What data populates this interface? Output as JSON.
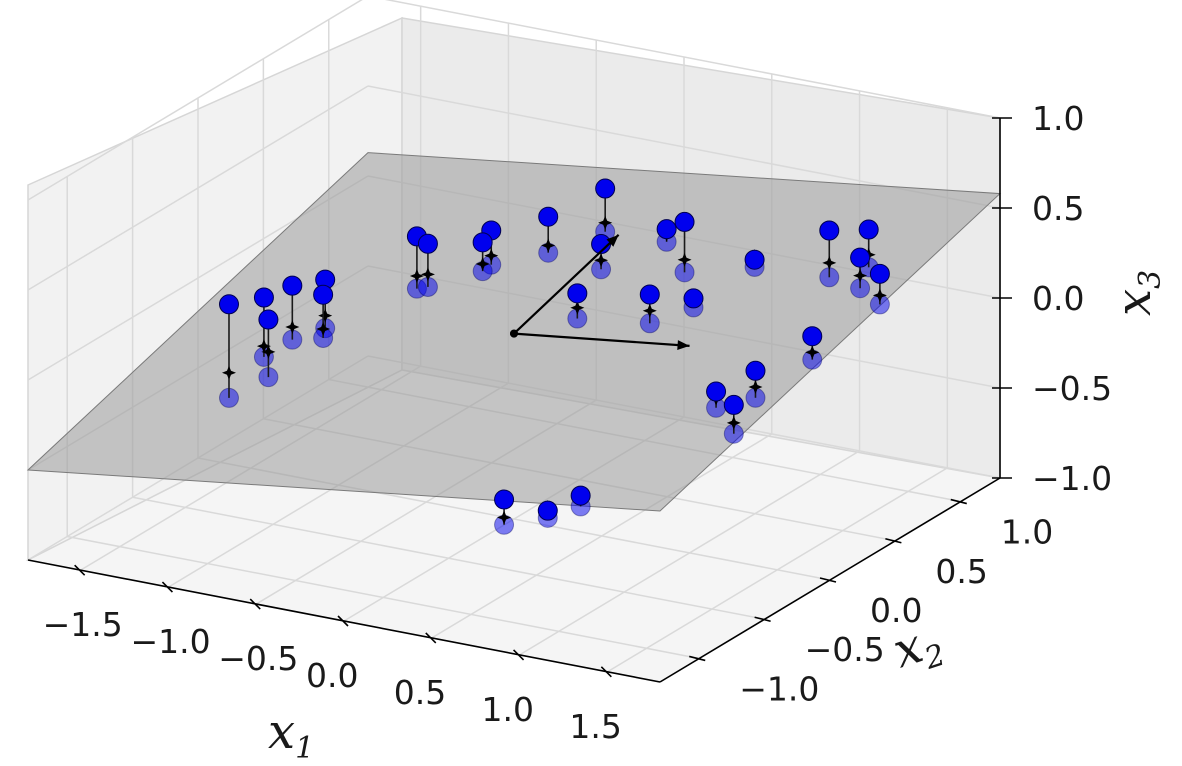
{
  "chart_data": {
    "type": "scatter",
    "projection": "3d",
    "title": "",
    "axes": {
      "x1": {
        "label": "x",
        "subscript": "1",
        "range": [
          -1.8,
          1.8
        ],
        "ticks": [
          -1.5,
          -1.0,
          -0.5,
          0.0,
          0.5,
          1.0,
          1.5
        ],
        "tick_labels": [
          "−1.5",
          "−1.0",
          "−0.5",
          "0.0",
          "0.5",
          "1.0",
          "1.5"
        ]
      },
      "x2": {
        "label": "x",
        "subscript": "2",
        "range": [
          -1.3,
          1.3
        ],
        "ticks": [
          -1.0,
          -0.5,
          0.0,
          0.5,
          1.0
        ],
        "tick_labels": [
          "−1.0",
          "−0.5",
          "0.0",
          "0.5",
          "1.0"
        ]
      },
      "x3": {
        "label": "x",
        "subscript": "3",
        "range": [
          -1.0,
          1.0
        ],
        "ticks": [
          -1.0,
          -0.5,
          0.0,
          0.5,
          1.0
        ],
        "tick_labels": [
          "−1.0",
          "−0.5",
          "0.0",
          "0.5",
          "1.0"
        ]
      }
    },
    "grid": true,
    "plane": {
      "label": "",
      "color": "#9a9a9a",
      "opacity": 0.55,
      "corners": [
        [
          -1.8,
          -1.3,
          -0.5
        ],
        [
          1.8,
          -1.3,
          -0.05
        ],
        [
          1.8,
          1.3,
          0.58
        ],
        [
          -1.8,
          1.3,
          0.13
        ]
      ]
    },
    "principal_components": [
      {
        "from": [
          0.0,
          0.0,
          0.03
        ],
        "to": [
          1.0,
          0.0,
          0.15
        ]
      },
      {
        "from": [
          0.0,
          0.0,
          0.03
        ],
        "to": [
          0.0,
          0.8,
          0.23
        ]
      }
    ],
    "series": [
      {
        "color": "#0000ee",
        "points": [
          {
            "above": [
              -1.4,
              -0.3,
              0.06
            ],
            "on": [
              -1.4,
              -0.3,
              -0.32
            ],
            "below": [
              -1.4,
              -0.3,
              -0.46
            ]
          },
          {
            "above": [
              -1.35,
              -0.1,
              0.02
            ],
            "on": [
              -1.35,
              -0.1,
              -0.25
            ],
            "below": [
              -1.35,
              -0.1,
              -0.31
            ]
          },
          {
            "above": [
              -1.3,
              0.05,
              0.03
            ],
            "on": [
              -1.3,
              0.05,
              -0.2
            ],
            "below": [
              -1.3,
              0.05,
              -0.27
            ]
          },
          {
            "above": [
              -1.25,
              -0.2,
              -0.04
            ],
            "on": [
              -1.25,
              -0.2,
              -0.22
            ],
            "below": [
              -1.25,
              -0.2,
              -0.36
            ]
          },
          {
            "above": [
              -1.15,
              0.1,
              0.07
            ],
            "on": [
              -1.15,
              0.1,
              -0.13
            ],
            "below": [
              -1.15,
              0.1,
              -0.2
            ]
          },
          {
            "above": [
              -1.05,
              -0.05,
              0.07
            ],
            "on": [
              -1.05,
              -0.05,
              -0.12
            ],
            "below": [
              -1.05,
              -0.05,
              -0.17
            ]
          },
          {
            "above": [
              -1.0,
              0.6,
              0.12
            ],
            "on": [
              -1.0,
              0.6,
              -0.1
            ],
            "below": [
              -1.0,
              0.6,
              -0.17
            ]
          },
          {
            "above": [
              -0.9,
              0.55,
              0.12
            ],
            "on": [
              -0.9,
              0.55,
              -0.05
            ],
            "below": [
              -0.9,
              0.55,
              -0.12
            ]
          },
          {
            "above": [
              -0.8,
              0.9,
              0.06
            ],
            "on": [
              -0.8,
              0.9,
              -0.08
            ],
            "below": [
              -0.8,
              0.9,
              -0.13
            ]
          },
          {
            "above": [
              -0.7,
              0.7,
              0.1
            ],
            "on": [
              -0.7,
              0.7,
              -0.02
            ],
            "below": [
              -0.7,
              0.7,
              -0.06
            ]
          },
          {
            "above": [
              -0.55,
              1.0,
              0.14
            ],
            "on": [
              -0.55,
              1.0,
              -0.02
            ],
            "below": [
              -0.55,
              1.0,
              -0.06
            ]
          },
          {
            "above": [
              -0.3,
              1.1,
              0.3
            ],
            "on": [
              -0.3,
              1.1,
              0.11
            ],
            "below": [
              -0.3,
              1.1,
              0.06
            ]
          },
          {
            "above": [
              -0.1,
              0.8,
              0.16
            ],
            "on": [
              -0.1,
              0.8,
              0.07
            ],
            "below": [
              -0.1,
              0.8,
              0.02
            ]
          },
          {
            "above": [
              0.05,
              1.1,
              0.14
            ],
            "on": [
              0.05,
              1.1,
              0.11
            ],
            "below": [
              0.05,
              1.1,
              0.07
            ]
          },
          {
            "above": [
              0.1,
              0.35,
              0.12
            ],
            "on": [
              0.1,
              0.35,
              0.04
            ],
            "below": [
              0.1,
              0.35,
              -0.02
            ]
          },
          {
            "above": [
              0.45,
              0.7,
              0.43
            ],
            "on": [
              0.45,
              0.7,
              0.22
            ],
            "below": [
              0.45,
              0.7,
              0.15
            ]
          },
          {
            "above": [
              0.55,
              0.3,
              0.22
            ],
            "on": [
              0.55,
              0.3,
              0.13
            ],
            "below": [
              0.55,
              0.3,
              0.06
            ]
          },
          {
            "above": [
              0.7,
              0.9,
              0.18
            ],
            "on": [
              0.7,
              0.9,
              0.2
            ],
            "below": [
              0.7,
              0.9,
              0.14
            ]
          },
          {
            "above": [
              0.65,
              0.5,
              0.13
            ],
            "on": [
              0.65,
              0.5,
              0.14
            ],
            "below": [
              0.65,
              0.5,
              0.08
            ]
          },
          {
            "above": [
              0.8,
              -1.15,
              -0.24
            ],
            "on": [
              0.8,
              -1.15,
              -0.34
            ],
            "below": [
              0.8,
              -1.15,
              -0.38
            ]
          },
          {
            "above": [
              0.9,
              -0.95,
              -0.37
            ],
            "on": [
              0.9,
              -0.95,
              -0.35
            ],
            "below": [
              0.9,
              -0.95,
              -0.41
            ]
          },
          {
            "above": [
              1.05,
              -0.9,
              -0.28
            ],
            "on": [
              1.05,
              -0.9,
              -0.3
            ],
            "below": [
              1.05,
              -0.9,
              -0.34
            ]
          },
          {
            "above": [
              1.2,
              0.8,
              0.48
            ],
            "on": [
              1.2,
              0.8,
              0.3
            ],
            "below": [
              1.2,
              0.8,
              0.22
            ]
          },
          {
            "above": [
              1.35,
              0.9,
              0.47
            ],
            "on": [
              1.35,
              0.9,
              0.33
            ],
            "below": [
              1.35,
              0.9,
              0.26
            ]
          },
          {
            "above": [
              1.45,
              0.7,
              0.42
            ],
            "on": [
              1.45,
              0.7,
              0.32
            ],
            "below": [
              1.45,
              0.7,
              0.25
            ]
          },
          {
            "above": [
              1.6,
              0.65,
              0.38
            ],
            "on": [
              1.6,
              0.65,
              0.26
            ],
            "below": [
              1.6,
              0.65,
              0.21
            ]
          },
          {
            "above": [
              1.55,
              0.2,
              0.22
            ],
            "on": [
              1.55,
              0.2,
              0.13
            ],
            "below": [
              1.55,
              0.2,
              0.09
            ]
          },
          {
            "above": [
              1.45,
              -0.1,
              0.14
            ],
            "on": [
              1.45,
              -0.1,
              0.05
            ],
            "below": [
              1.45,
              -0.1,
              -0.01
            ]
          },
          {
            "above": [
              1.3,
              -0.2,
              0.04
            ],
            "on": [
              1.3,
              -0.2,
              0.0
            ],
            "below": [
              1.3,
              -0.2,
              -0.05
            ]
          },
          {
            "above": [
              1.55,
              -0.4,
              0.1
            ],
            "on": [
              1.55,
              -0.4,
              0.0
            ],
            "below": [
              1.55,
              -0.4,
              -0.06
            ]
          }
        ]
      }
    ]
  }
}
